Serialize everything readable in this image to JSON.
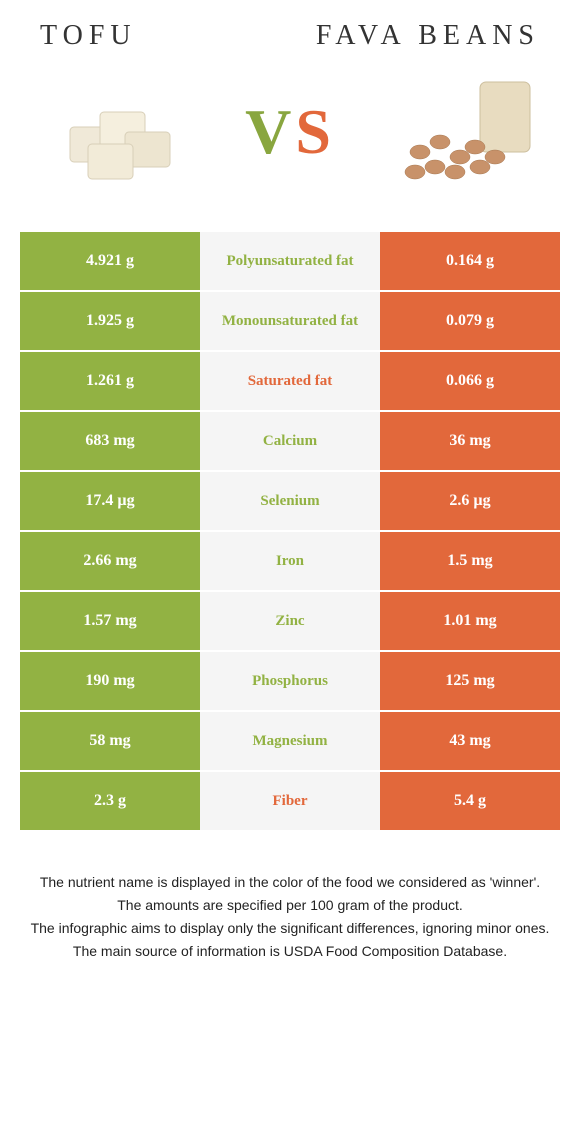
{
  "foods": {
    "left": {
      "name": "TOFU",
      "color": "#92b243"
    },
    "right": {
      "name": "FAVA BEANS",
      "color": "#e2683b"
    }
  },
  "vs": {
    "v": "V",
    "s": "S"
  },
  "colors": {
    "green": "#92b243",
    "orange": "#e2683b",
    "mid_bg": "#f5f5f5",
    "white": "#ffffff"
  },
  "rows": [
    {
      "left": "4.921 g",
      "label": "Polyunsaturated fat",
      "right": "0.164 g",
      "winner": "left"
    },
    {
      "left": "1.925 g",
      "label": "Monounsaturated fat",
      "right": "0.079 g",
      "winner": "left"
    },
    {
      "left": "1.261 g",
      "label": "Saturated fat",
      "right": "0.066 g",
      "winner": "right"
    },
    {
      "left": "683 mg",
      "label": "Calcium",
      "right": "36 mg",
      "winner": "left"
    },
    {
      "left": "17.4 µg",
      "label": "Selenium",
      "right": "2.6 µg",
      "winner": "left"
    },
    {
      "left": "2.66 mg",
      "label": "Iron",
      "right": "1.5 mg",
      "winner": "left"
    },
    {
      "left": "1.57 mg",
      "label": "Zinc",
      "right": "1.01 mg",
      "winner": "left"
    },
    {
      "left": "190 mg",
      "label": "Phosphorus",
      "right": "125 mg",
      "winner": "left"
    },
    {
      "left": "58 mg",
      "label": "Magnesium",
      "right": "43 mg",
      "winner": "left"
    },
    {
      "left": "2.3 g",
      "label": "Fiber",
      "right": "5.4 g",
      "winner": "right"
    }
  ],
  "footer": [
    "The nutrient name is displayed in the color of the food we considered as 'winner'.",
    "The amounts are specified per 100 gram of the product.",
    "The infographic aims to display only the significant differences, ignoring minor ones.",
    "The main source of information is USDA Food Composition Database."
  ]
}
